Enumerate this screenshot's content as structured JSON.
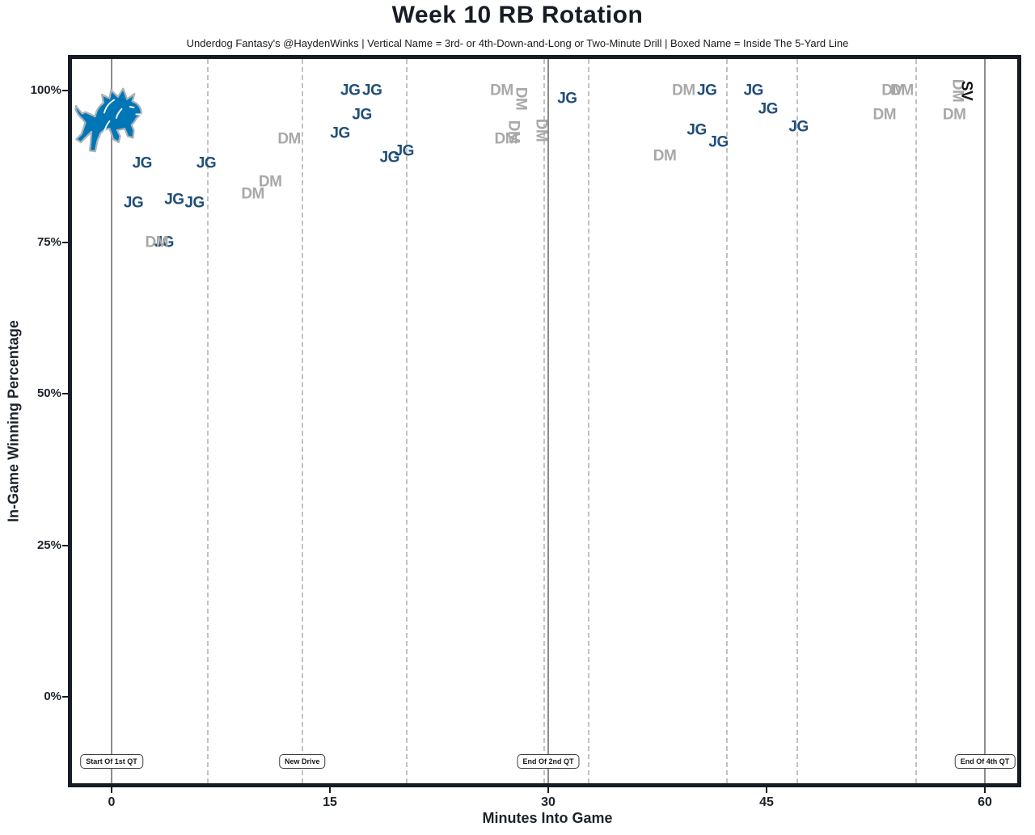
{
  "page": {
    "title": "Week 10 RB Rotation",
    "subtitle": "Underdog Fantasy's @HaydenWinks | Vertical Name = 3rd- or 4th-Down-and-Long or Two-Minute Drill | Boxed Name = Inside The 5-Yard Line"
  },
  "chart_data": {
    "type": "scatter",
    "title": "Week 10 RB Rotation",
    "subtitle": "Underdog Fantasy's @HaydenWinks | Vertical Name = 3rd- or 4th-Down-and-Long or Two-Minute Drill | Boxed Name = Inside The 5-Yard Line",
    "xlabel": "Minutes Into Game",
    "ylabel": "In-Game Winning Percentage",
    "team_logo": "detroit-lions",
    "logo_colors": {
      "primary": "#0076b6",
      "outline": "#aab3b9"
    },
    "xlim": [
      -2.7,
      62.5
    ],
    "ylim": [
      -10.5,
      105
    ],
    "x_ticks": [
      0,
      15,
      30,
      45,
      60
    ],
    "y_ticks": [
      0,
      25,
      50,
      75,
      100
    ],
    "y_tick_suffix": "%",
    "grid": {
      "solid_x": [
        0,
        30,
        60
      ],
      "dashed_x": [
        6.6,
        13.1,
        20.3,
        29.7,
        32.8,
        42.3,
        47.1,
        55.3
      ]
    },
    "annotations": [
      {
        "label": "Start Of 1st QT",
        "x": 0
      },
      {
        "label": "New Drive",
        "x": 13.1
      },
      {
        "label": "End Of 2nd QT",
        "x": 30
      },
      {
        "label": "End Of 4th QT",
        "x": 60
      }
    ],
    "series": [
      {
        "name": "JG",
        "color": "#1f4e79",
        "points": [
          {
            "x": 1.5,
            "y": 81.5
          },
          {
            "x": 2.1,
            "y": 88
          },
          {
            "x": 3.6,
            "y": 75
          },
          {
            "x": 4.3,
            "y": 82
          },
          {
            "x": 5.7,
            "y": 81.5
          },
          {
            "x": 6.5,
            "y": 88
          },
          {
            "x": 15.7,
            "y": 93
          },
          {
            "x": 16.4,
            "y": 100
          },
          {
            "x": 17.2,
            "y": 96
          },
          {
            "x": 17.9,
            "y": 100
          },
          {
            "x": 19.1,
            "y": 89
          },
          {
            "x": 20.1,
            "y": 90
          },
          {
            "x": 31.3,
            "y": 98.7
          },
          {
            "x": 40.2,
            "y": 93.5
          },
          {
            "x": 40.9,
            "y": 100
          },
          {
            "x": 41.7,
            "y": 91.5
          },
          {
            "x": 44.1,
            "y": 100
          },
          {
            "x": 45.1,
            "y": 97
          },
          {
            "x": 47.2,
            "y": 94
          }
        ]
      },
      {
        "name": "DM",
        "color": "#a8a8a8",
        "points": [
          {
            "x": 3.1,
            "y": 75
          },
          {
            "x": 9.7,
            "y": 83
          },
          {
            "x": 10.9,
            "y": 85
          },
          {
            "x": 12.2,
            "y": 92
          },
          {
            "x": 26.8,
            "y": 100
          },
          {
            "x": 27.1,
            "y": 92
          },
          {
            "x": 27.6,
            "y": 93.2,
            "vertical": true
          },
          {
            "x": 28.1,
            "y": 98.7,
            "vertical": true
          },
          {
            "x": 29.5,
            "y": 93.5,
            "vertical": true
          },
          {
            "x": 38.0,
            "y": 89.2
          },
          {
            "x": 39.3,
            "y": 100
          },
          {
            "x": 53.1,
            "y": 96
          },
          {
            "x": 53.7,
            "y": 100
          },
          {
            "x": 54.3,
            "y": 100
          },
          {
            "x": 57.9,
            "y": 96
          },
          {
            "x": 58.1,
            "y": 100,
            "vertical": true
          }
        ]
      },
      {
        "name": "SV",
        "color": "#141414",
        "points": [
          {
            "x": 58.7,
            "y": 100,
            "vertical": true
          }
        ]
      }
    ]
  }
}
